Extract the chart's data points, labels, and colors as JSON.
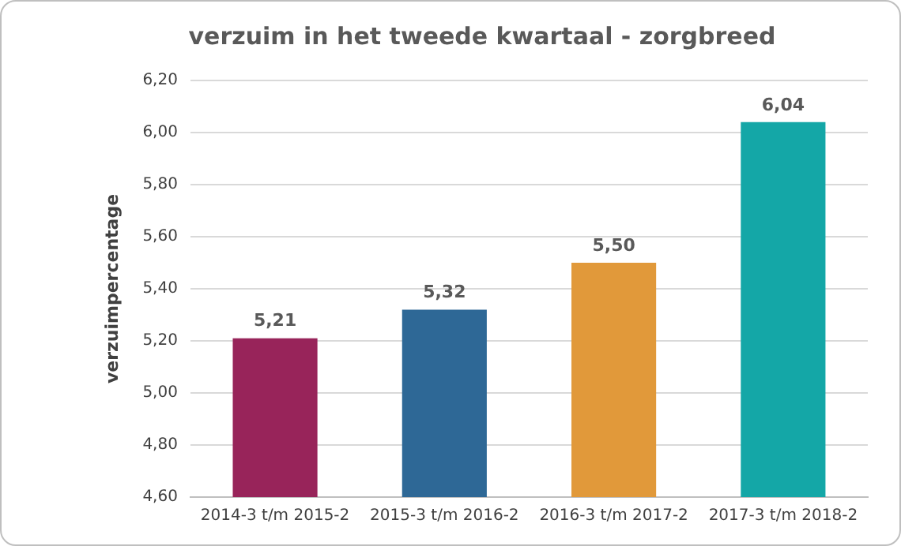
{
  "chart_data": {
    "type": "bar",
    "title": "verzuim in het tweede kwartaal - zorgbreed",
    "ylabel": "verzuimpercentage",
    "categories": [
      "2014-3 t/m 2015-2",
      "2015-3 t/m 2016-2",
      "2016-3 t/m 2017-2",
      "2017-3 t/m 2018-2"
    ],
    "values": [
      5.21,
      5.32,
      5.5,
      6.04
    ],
    "colors": [
      "#98245a",
      "#2e6896",
      "#e1993a",
      "#14a7a7"
    ],
    "value_labels": [
      "5,21",
      "5,32",
      "5,50",
      "6,04"
    ],
    "ylim": [
      4.6,
      6.2
    ],
    "yticks": [
      {
        "value": 4.6,
        "label": "4,60"
      },
      {
        "value": 4.8,
        "label": "4,80"
      },
      {
        "value": 5.0,
        "label": "5,00"
      },
      {
        "value": 5.2,
        "label": "5,20"
      },
      {
        "value": 5.4,
        "label": "5,40"
      },
      {
        "value": 5.6,
        "label": "5,60"
      },
      {
        "value": 5.8,
        "label": "5,80"
      },
      {
        "value": 6.0,
        "label": "6,00"
      },
      {
        "value": 6.2,
        "label": "6,20"
      }
    ],
    "grid": "y",
    "legend": false
  }
}
